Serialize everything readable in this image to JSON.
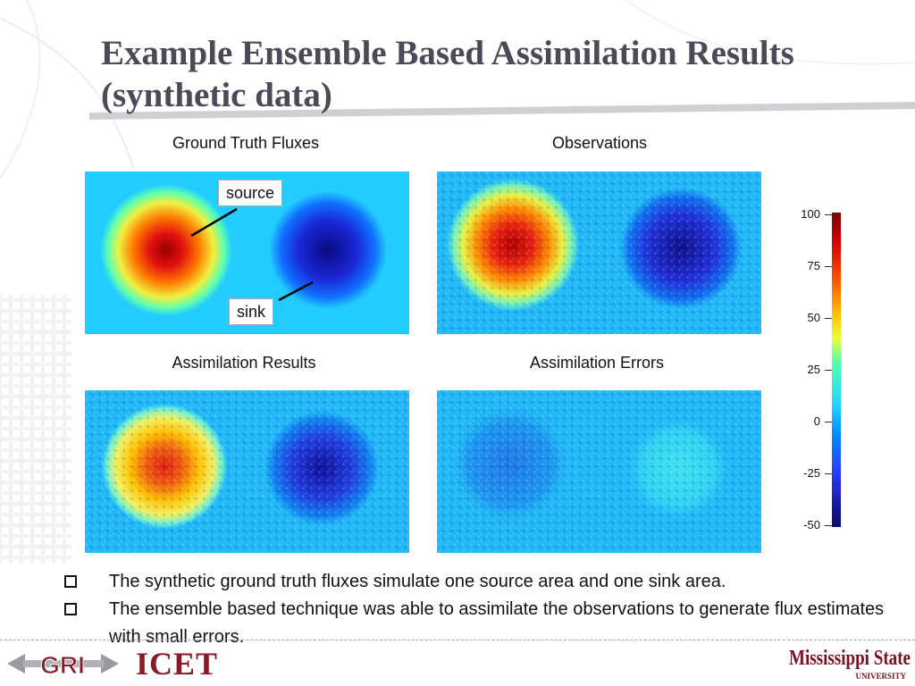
{
  "slide": {
    "title": "Example Ensemble Based Assimilation Results (synthetic data)"
  },
  "panels": [
    {
      "id": "ground_truth",
      "caption": "Ground Truth Fluxes"
    },
    {
      "id": "observations",
      "caption": "Observations"
    },
    {
      "id": "assimilation_results",
      "caption": "Assimilation Results"
    },
    {
      "id": "assimilation_errors",
      "caption": "Assimilation Errors"
    }
  ],
  "callouts": {
    "source": "source",
    "sink": "sink"
  },
  "colorbar": {
    "ticks": [
      "100",
      "75",
      "50",
      "25",
      "0",
      "-25",
      "-50"
    ],
    "colors": {
      "max": "#7a0000",
      "mid": "#22d6ff",
      "min": "#0c0c6a"
    }
  },
  "bullets": [
    "The synthetic ground truth fluxes simulate one source area and one sink area.",
    "The ensemble based technique was able to assimilate the observations to generate flux estimates with small errors."
  ],
  "logos": {
    "gri": "GRI",
    "icet": "ICET",
    "msu": "Mississippi State",
    "msu_sub": "UNIVERSITY"
  },
  "chart_data": {
    "type": "heatmap",
    "panels": [
      "Ground Truth Fluxes",
      "Observations",
      "Assimilation Results",
      "Assimilation Errors"
    ],
    "colorbar_range": [
      -50,
      100
    ],
    "colorbar_ticks": [
      100,
      75,
      50,
      25,
      0,
      -25,
      -50
    ]
  }
}
